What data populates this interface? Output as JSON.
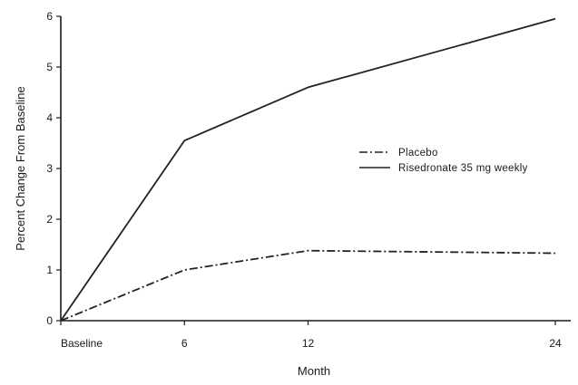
{
  "chart_data": {
    "type": "line",
    "title": "",
    "xlabel": "Month",
    "ylabel": "Percent Change From Baseline",
    "x": [
      0,
      6,
      12,
      24
    ],
    "x_tick_labels": [
      "Baseline",
      "6",
      "12",
      "24"
    ],
    "xlim": [
      0,
      24
    ],
    "ylim": [
      0,
      6
    ],
    "y_ticks": [
      0,
      1,
      2,
      3,
      4,
      5,
      6
    ],
    "grid": false,
    "legend_position": "right",
    "series": [
      {
        "name": "Placebo",
        "line_style": "dash-dot",
        "color": "#222222",
        "values": [
          0,
          1.0,
          1.38,
          1.33
        ]
      },
      {
        "name": "Risedronate 35 mg weekly",
        "line_style": "solid",
        "color": "#222222",
        "values": [
          0,
          3.55,
          4.6,
          5.95
        ]
      }
    ]
  }
}
